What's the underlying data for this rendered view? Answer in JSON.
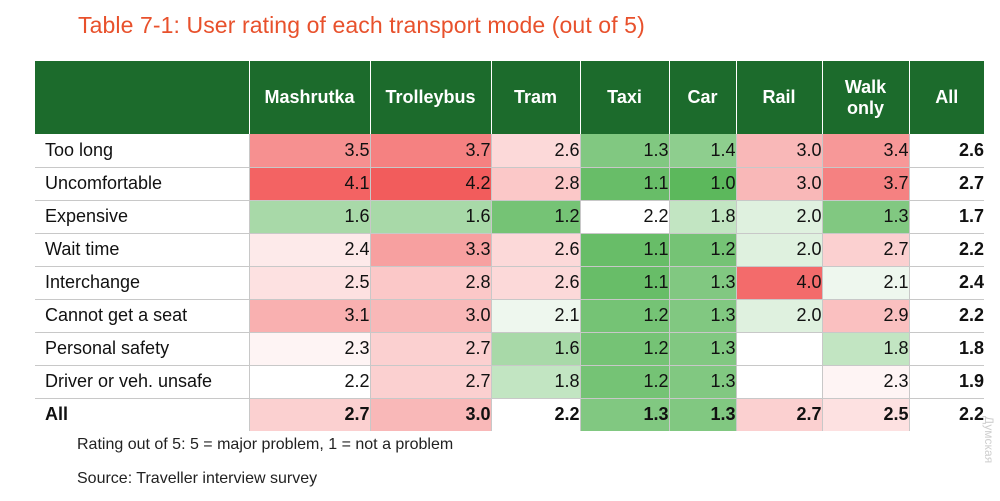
{
  "title": "Table 7-1: User rating of each transport mode (out of 5)",
  "colors": {
    "title": "#e8512c",
    "header_bg": "#1c6b2c",
    "high": "#f25c5c",
    "mid": "#ffffff",
    "low": "#5cb85c"
  },
  "chart_data": {
    "type": "heatmap",
    "title": "Table 7-1: User rating of each transport mode (out of 5)",
    "columns": [
      "Mashrutka",
      "Trolleybus",
      "Tram",
      "Taxi",
      "Car",
      "Rail",
      "Walk only",
      "All"
    ],
    "rows": [
      {
        "label": "Too long",
        "values": [
          "3.5",
          "3.7",
          "2.6",
          "1.3",
          "1.4",
          "3.0",
          "3.4",
          "2.6"
        ]
      },
      {
        "label": "Uncomfortable",
        "values": [
          "4.1",
          "4.2",
          "2.8",
          "1.1",
          "1.0",
          "3.0",
          "3.7",
          "2.7"
        ]
      },
      {
        "label": "Expensive",
        "values": [
          "1.6",
          "1.6",
          "1.2",
          "2.2",
          "1.8",
          "2.0",
          "1.3",
          "1.7"
        ]
      },
      {
        "label": "Wait time",
        "values": [
          "2.4",
          "3.3",
          "2.6",
          "1.1",
          "1.2",
          "2.0",
          "2.7",
          "2.2"
        ]
      },
      {
        "label": "Interchange",
        "values": [
          "2.5",
          "2.8",
          "2.6",
          "1.1",
          "1.3",
          "4.0",
          "2.1",
          "2.4"
        ]
      },
      {
        "label": "Cannot get a seat",
        "values": [
          "3.1",
          "3.0",
          "2.1",
          "1.2",
          "1.3",
          "2.0",
          "2.9",
          "2.2"
        ]
      },
      {
        "label": "Personal safety",
        "values": [
          "2.3",
          "2.7",
          "1.6",
          "1.2",
          "1.3",
          "",
          "1.8",
          "1.8"
        ]
      },
      {
        "label": "Driver or veh. unsafe",
        "values": [
          "2.2",
          "2.7",
          "1.8",
          "1.2",
          "1.3",
          "",
          "2.3",
          "1.9"
        ]
      },
      {
        "label": "All",
        "values": [
          "2.7",
          "3.0",
          "2.2",
          "1.3",
          "1.3",
          "2.7",
          "2.5",
          "2.2"
        ]
      }
    ],
    "scale": [
      1,
      5
    ]
  },
  "notes": {
    "scale_note": "Rating out of 5: 5 = major problem, 1 = not a problem",
    "source": "Source: Traveller interview survey"
  },
  "watermark": "Думская"
}
